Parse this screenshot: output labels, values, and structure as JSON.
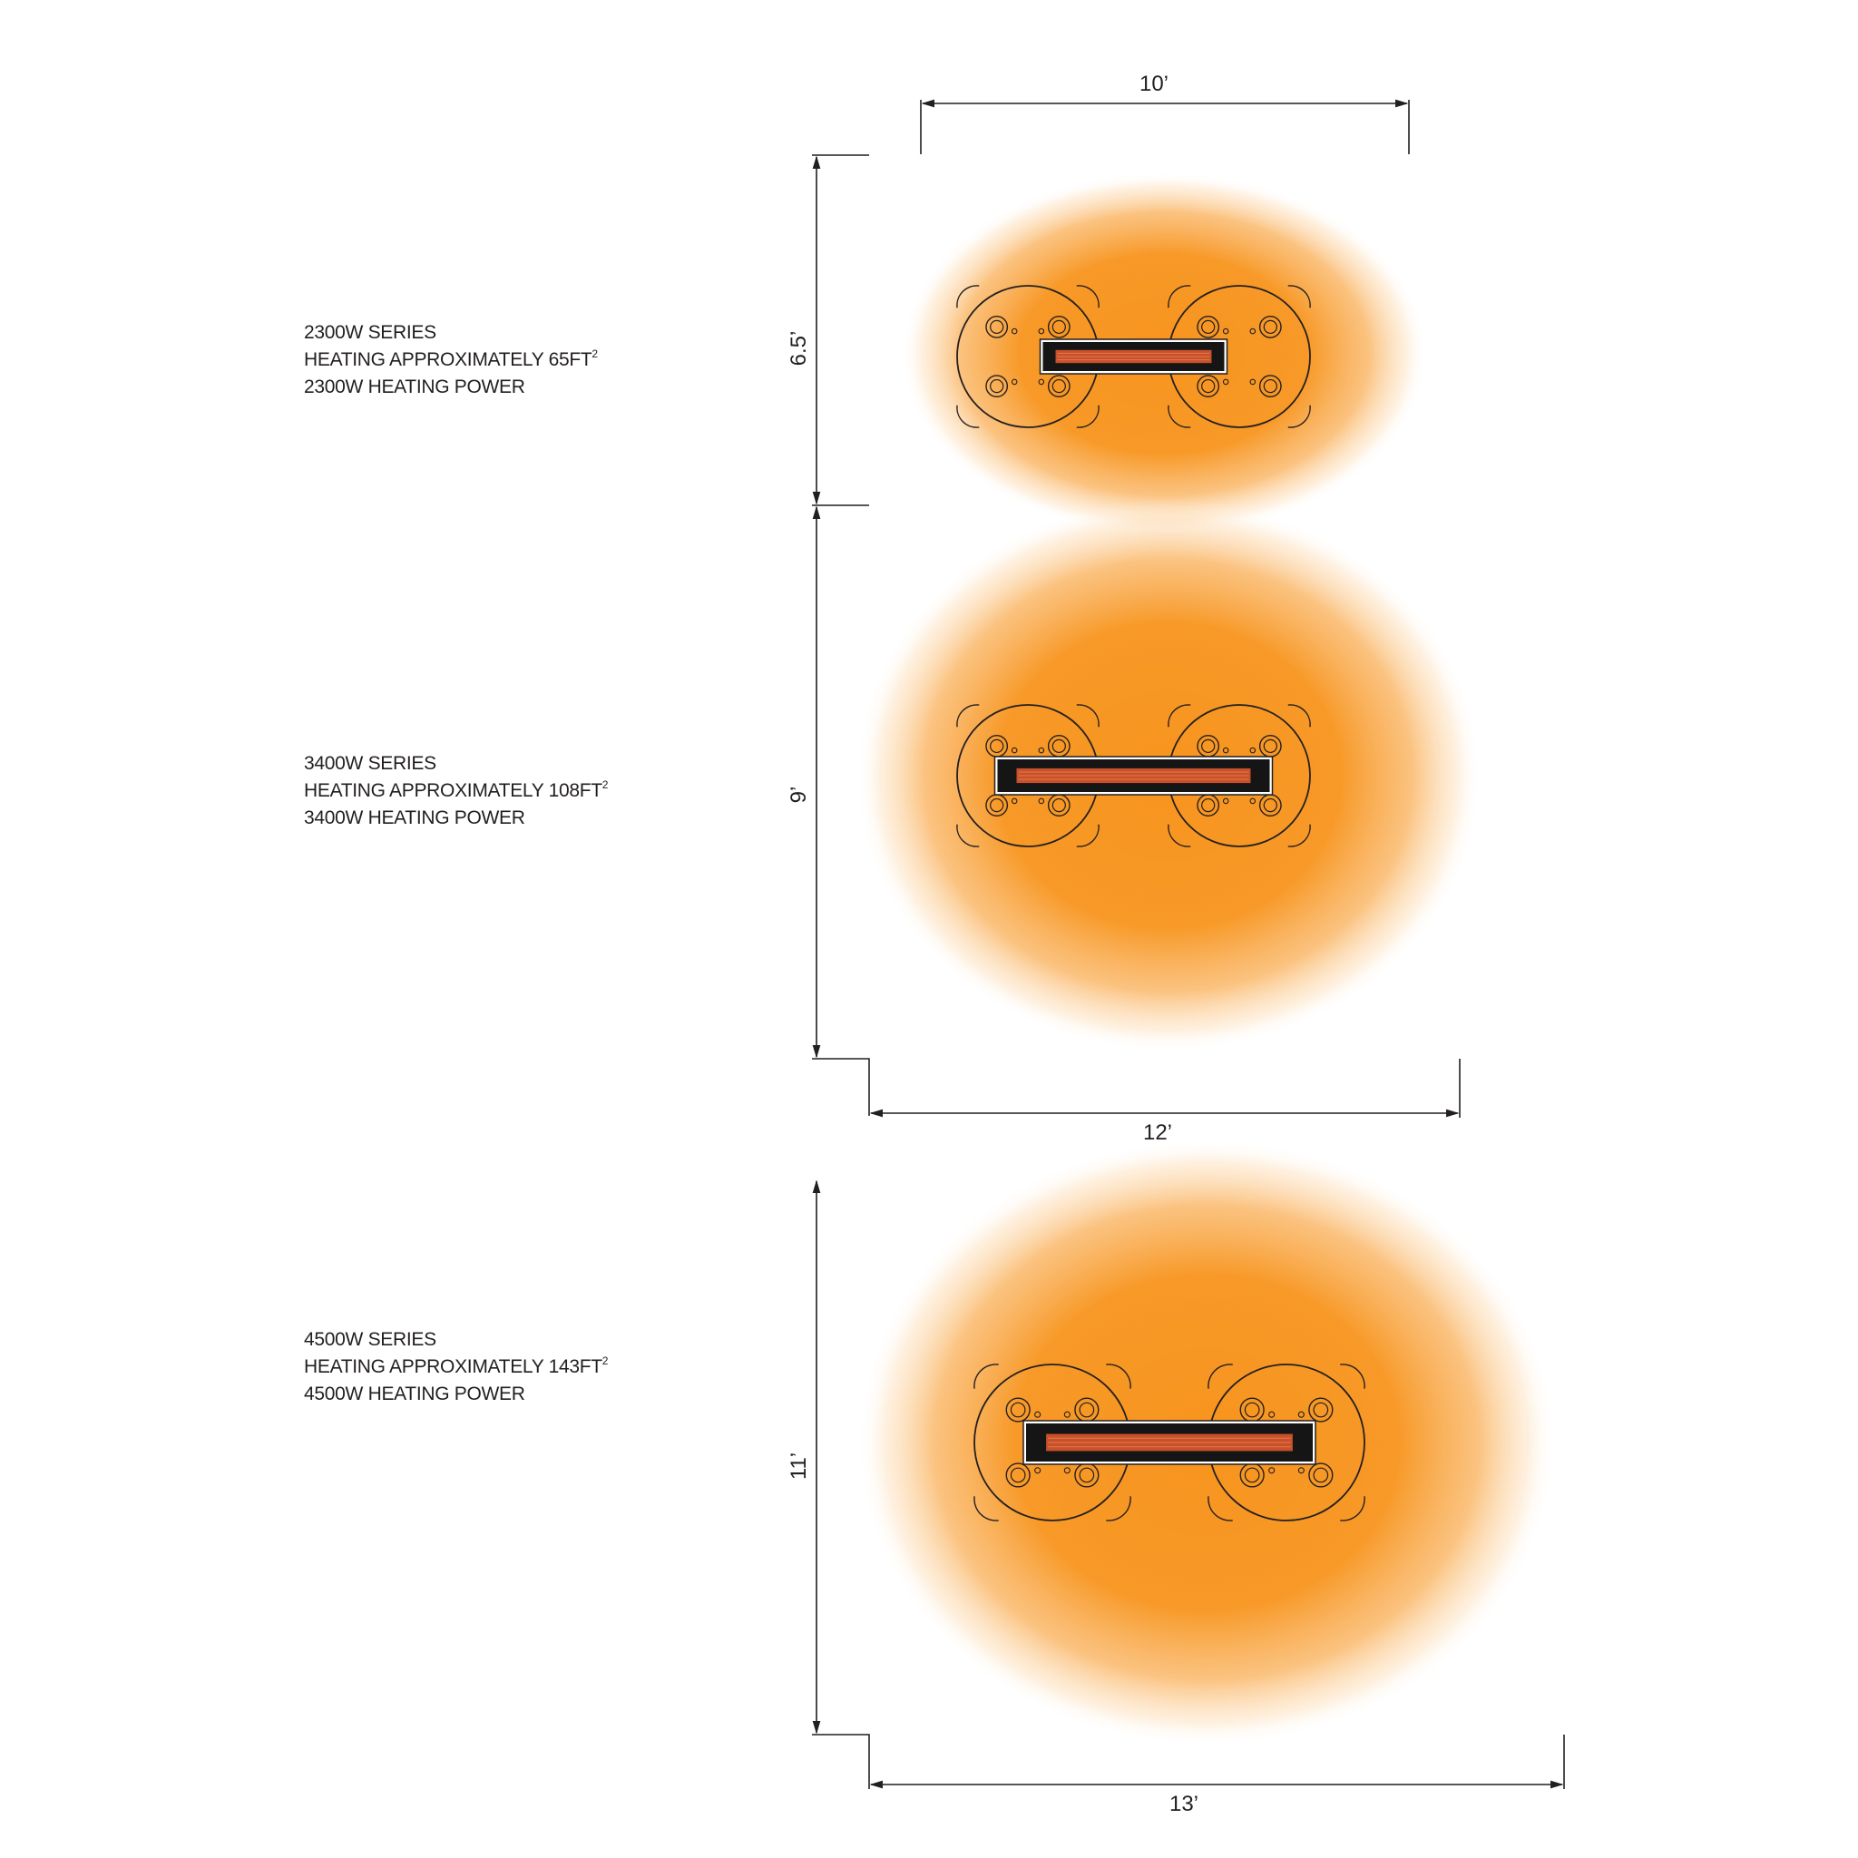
{
  "colors": {
    "heat": "#f7941d",
    "line": "#231f20",
    "element": "#c8502a"
  },
  "series": [
    {
      "name": "2300W SERIES",
      "coverage_prefix": "HEATING APPROXIMATELY 65FT",
      "coverage_unit": "2",
      "power": "2300W HEATING POWER",
      "depth_label": "6.5’"
    },
    {
      "name": "3400W SERIES",
      "coverage_prefix": "HEATING APPROXIMATELY 108FT",
      "coverage_unit": "2",
      "power": "3400W HEATING POWER",
      "depth_label": "9’"
    },
    {
      "name": "4500W SERIES",
      "coverage_prefix": "HEATING APPROXIMATELY 143FT",
      "coverage_unit": "2",
      "power": "4500W HEATING POWER",
      "depth_label": "11’"
    }
  ],
  "widths": {
    "top": "10’",
    "middle": "12’",
    "bottom": "13’"
  }
}
